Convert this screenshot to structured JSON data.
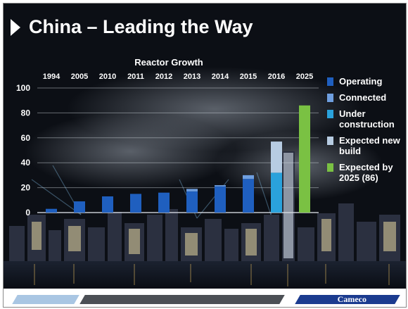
{
  "slide": {
    "title": "China – Leading the Way",
    "brand": "Cameco",
    "colors": {
      "background": "#0d1016",
      "footer_light": "#a9c6e3",
      "footer_dark": "#4b4f55",
      "footer_blue": "#1b3b8f"
    }
  },
  "chart_data": {
    "type": "bar",
    "stacked": true,
    "title": "Reactor Growth",
    "categories": [
      "1994",
      "2005",
      "2010",
      "2011",
      "2012",
      "2013",
      "2014",
      "2015",
      "2016",
      "2025"
    ],
    "ylim": [
      0,
      100
    ],
    "yticks": [
      "0",
      "20",
      "40",
      "60",
      "80",
      "100"
    ],
    "ytick_values": [
      0,
      20,
      40,
      60,
      80,
      100
    ],
    "x_axis_position": "top",
    "grid": true,
    "legend_position": "right",
    "series": [
      {
        "name": "Operating",
        "color": "#1f5fbf",
        "values": [
          3,
          9,
          13,
          15,
          16,
          17,
          21,
          27,
          0,
          0
        ]
      },
      {
        "name": "Connected",
        "color": "#6f9fe0",
        "values": [
          0,
          0,
          0,
          0,
          0,
          2,
          1,
          3,
          0,
          0
        ]
      },
      {
        "name": "Under construction",
        "color": "#2aa2dc",
        "values": [
          0,
          0,
          0,
          0,
          0,
          0,
          0,
          0,
          32,
          0
        ]
      },
      {
        "name": "Expected new build",
        "color": "#b7cce2",
        "values": [
          0,
          0,
          0,
          0,
          0,
          0,
          0,
          0,
          25,
          0
        ]
      },
      {
        "name": "Expected by 2025 (86)",
        "color": "#7ac143",
        "values": [
          0,
          0,
          0,
          0,
          0,
          0,
          0,
          0,
          0,
          86
        ]
      }
    ]
  }
}
